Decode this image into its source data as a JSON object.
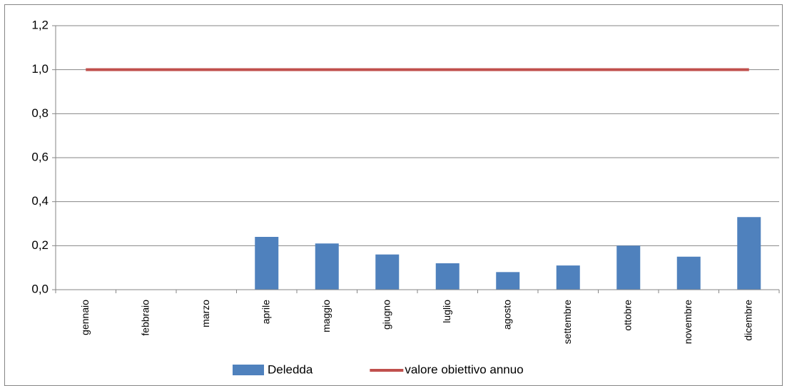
{
  "chart_data": {
    "type": "bar",
    "categories": [
      "gennaio",
      "febbraio",
      "marzo",
      "aprile",
      "maggio",
      "giugno",
      "luglio",
      "agosto",
      "settembre",
      "ottobre",
      "novembre",
      "dicembre"
    ],
    "series": [
      {
        "name": "Deledda",
        "type": "bar",
        "color": "#4f81bd",
        "values": [
          0,
          0,
          0,
          0.24,
          0.21,
          0.16,
          0.12,
          0.08,
          0.11,
          0.2,
          0.15,
          0.33
        ]
      },
      {
        "name": "valore obiettivo annuo",
        "type": "line",
        "color": "#c0504d",
        "values": [
          1,
          1,
          1,
          1,
          1,
          1,
          1,
          1,
          1,
          1,
          1,
          1
        ]
      }
    ],
    "ylim": [
      0,
      1.2
    ],
    "yticks": [
      {
        "value": 0,
        "label": "0,0"
      },
      {
        "value": 0.2,
        "label": "0,2"
      },
      {
        "value": 0.4,
        "label": "0,4"
      },
      {
        "value": 0.6,
        "label": "0,6"
      },
      {
        "value": 0.8,
        "label": "0,8"
      },
      {
        "value": 1,
        "label": "1,0"
      },
      {
        "value": 1.2,
        "label": "1,2"
      }
    ],
    "grid": true,
    "legend": "bottom"
  }
}
